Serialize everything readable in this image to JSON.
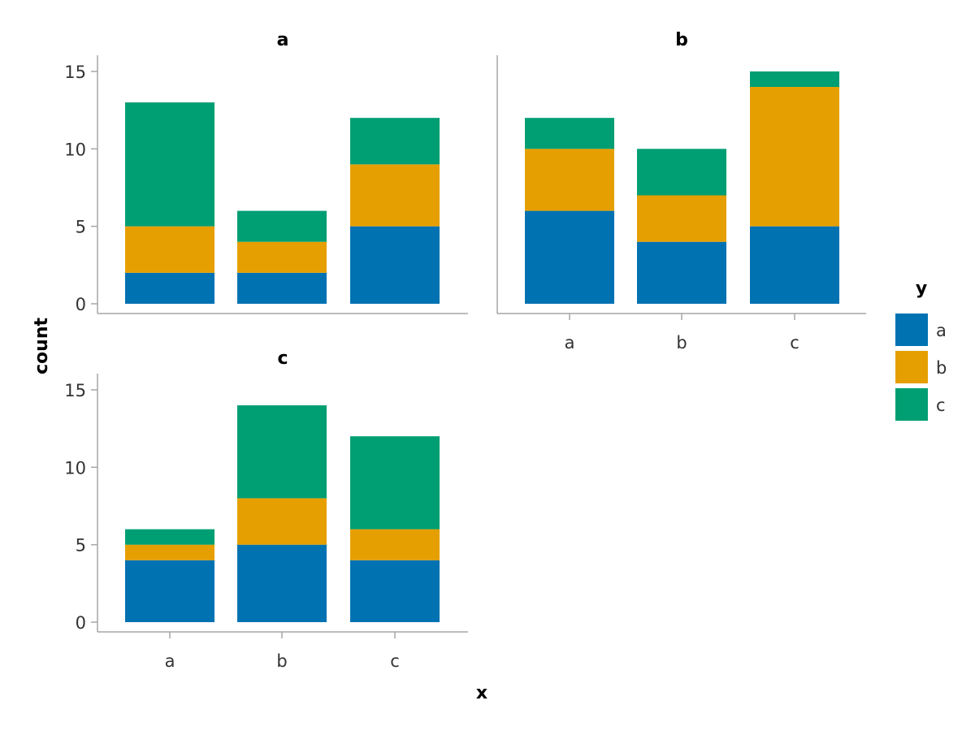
{
  "chart_data": {
    "type": "bar",
    "stacked": true,
    "xlabel": "x",
    "ylabel": "count",
    "ylim": [
      0,
      15
    ],
    "yticks": [
      0,
      5,
      10,
      15
    ],
    "categories": [
      "a",
      "b",
      "c"
    ],
    "legend": {
      "title": "y",
      "placement": "right",
      "entries": [
        {
          "label": "a",
          "color": "#0072B2"
        },
        {
          "label": "b",
          "color": "#E69F00"
        },
        {
          "label": "c",
          "color": "#009E73"
        }
      ]
    },
    "facets": [
      {
        "title": "a",
        "series": [
          {
            "name": "a",
            "values": [
              2,
              2,
              5
            ]
          },
          {
            "name": "b",
            "values": [
              3,
              2,
              4
            ]
          },
          {
            "name": "c",
            "values": [
              8,
              2,
              3
            ]
          }
        ]
      },
      {
        "title": "b",
        "series": [
          {
            "name": "a",
            "values": [
              6,
              4,
              5
            ]
          },
          {
            "name": "b",
            "values": [
              4,
              3,
              9
            ]
          },
          {
            "name": "c",
            "values": [
              2,
              3,
              1
            ]
          }
        ]
      },
      {
        "title": "c",
        "series": [
          {
            "name": "a",
            "values": [
              4,
              5,
              4
            ]
          },
          {
            "name": "b",
            "values": [
              1,
              3,
              2
            ]
          },
          {
            "name": "c",
            "values": [
              1,
              6,
              6
            ]
          }
        ]
      }
    ]
  }
}
